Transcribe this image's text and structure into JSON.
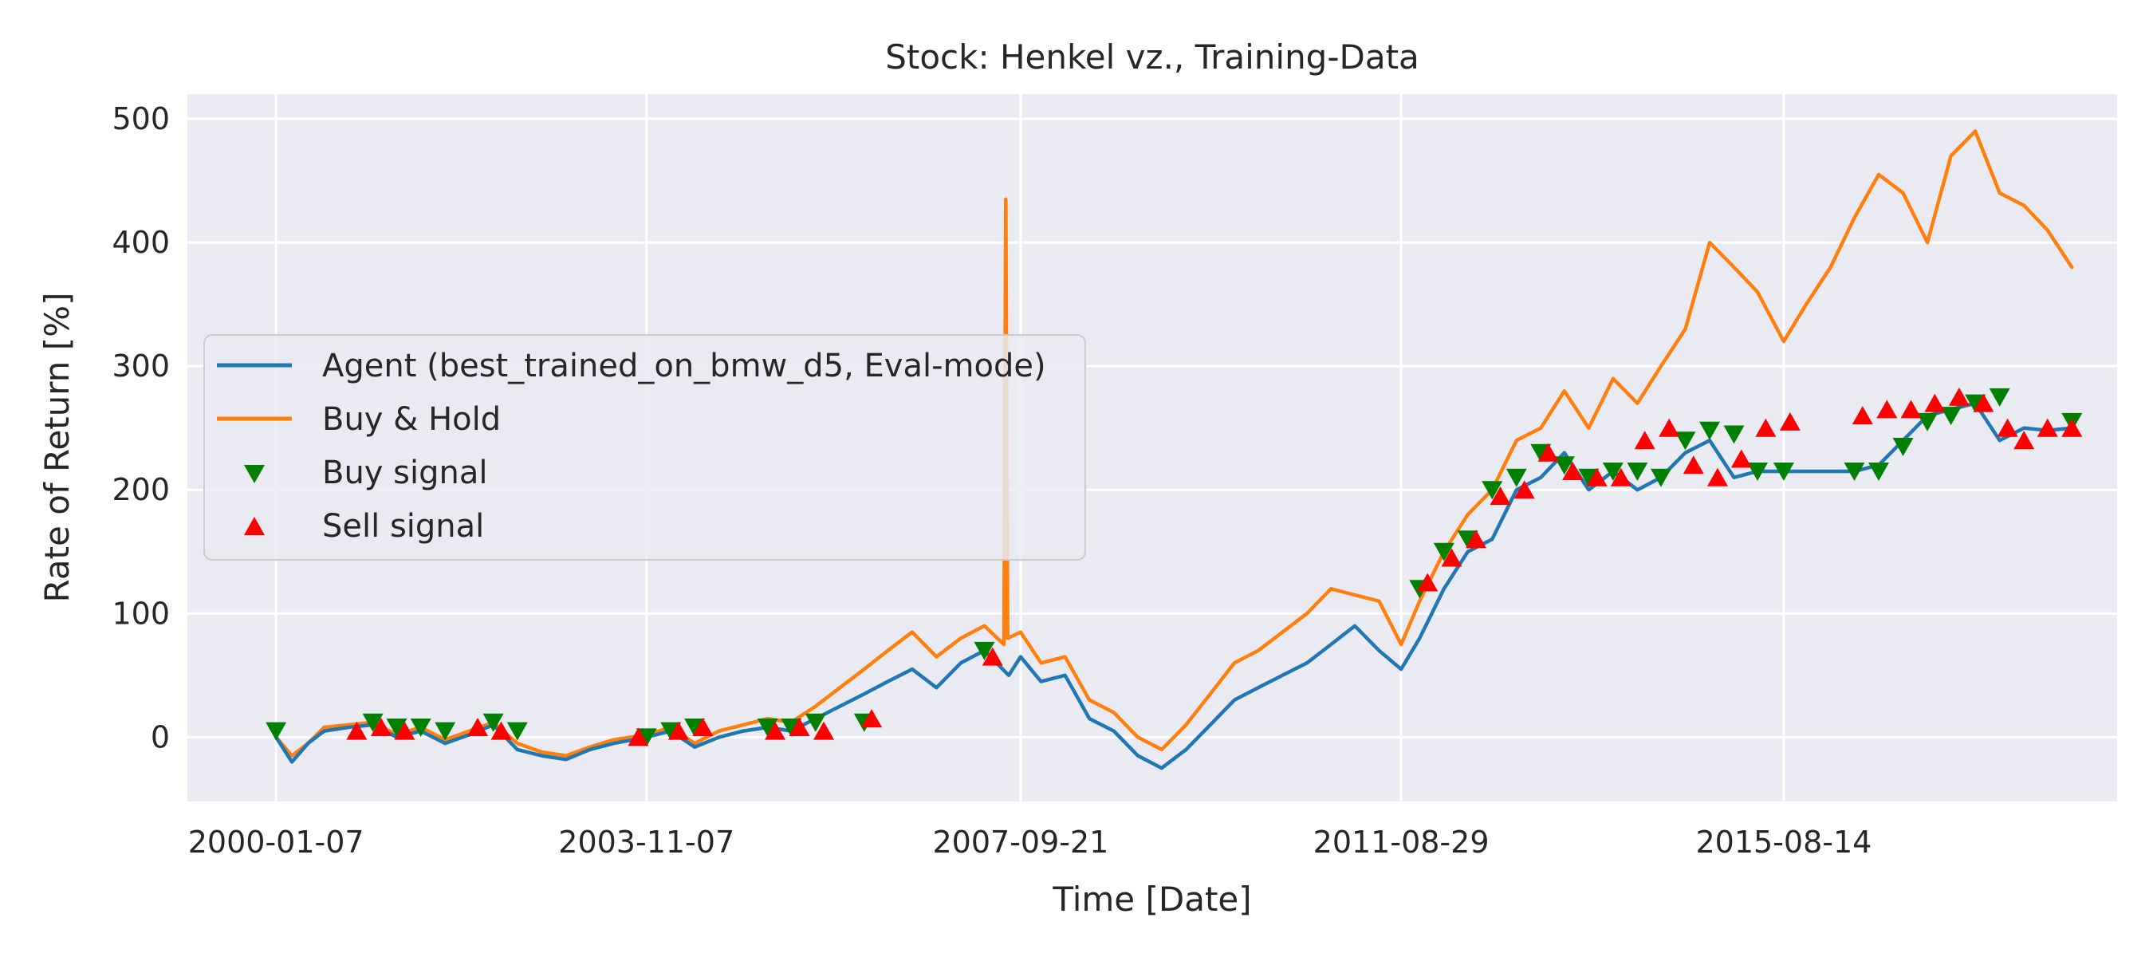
{
  "chart_data": {
    "type": "line",
    "title": "Stock: Henkel vz., Training-Data",
    "xlabel": "Time [Date]",
    "ylabel": "Rate of Return [%]",
    "x_tick_labels": [
      "2000-01-07",
      "2003-11-07",
      "2007-09-21",
      "2011-08-29",
      "2015-08-14"
    ],
    "x_ticks": [
      "2000-01-07",
      "2003-11-07",
      "2007-09-21",
      "2011-08-29",
      "2015-08-14"
    ],
    "xlim": [
      "1999-02-06",
      "2019-01-25"
    ],
    "y_ticks": [
      0,
      100,
      200,
      300,
      400,
      500
    ],
    "ylim": [
      -52,
      520
    ],
    "grid": true,
    "legend_position": "center-left",
    "colors": {
      "background": "#eaeaf2",
      "grid": "#ffffff",
      "agent": "#1f77b4",
      "buy_hold": "#ff7f0e",
      "buy": "#008000",
      "sell": "#ff0000"
    },
    "series": [
      {
        "name": "Agent (best_trained_on_bmw_d5, Eval-mode)",
        "kind": "line",
        "color": "#1f77b4",
        "x": [
          "2000-01-07",
          "2000-03-07",
          "2000-05-07",
          "2000-07-07",
          "2000-10-07",
          "2001-01-07",
          "2001-04-07",
          "2001-07-07",
          "2001-10-07",
          "2002-01-07",
          "2002-04-07",
          "2002-07-07",
          "2002-10-07",
          "2003-01-07",
          "2003-04-07",
          "2003-07-07",
          "2003-11-07",
          "2004-02-07",
          "2004-05-07",
          "2004-08-07",
          "2004-11-07",
          "2005-02-07",
          "2005-05-07",
          "2005-08-07",
          "2005-11-07",
          "2006-02-07",
          "2006-05-07",
          "2006-08-07",
          "2006-11-07",
          "2007-02-07",
          "2007-05-07",
          "2007-08-07",
          "2007-09-21",
          "2007-12-07",
          "2008-03-07",
          "2008-06-07",
          "2008-09-07",
          "2008-12-07",
          "2009-03-07",
          "2009-06-07",
          "2009-09-07",
          "2009-12-07",
          "2010-03-07",
          "2010-06-07",
          "2010-09-07",
          "2010-12-07",
          "2011-03-07",
          "2011-06-07",
          "2011-08-29",
          "2011-11-07",
          "2012-02-07",
          "2012-05-07",
          "2012-08-07",
          "2012-11-07",
          "2013-02-07",
          "2013-05-07",
          "2013-08-07",
          "2013-11-07",
          "2014-02-07",
          "2014-05-07",
          "2014-08-07",
          "2014-11-07",
          "2015-02-07",
          "2015-05-07",
          "2015-08-14",
          "2015-11-07",
          "2016-02-07",
          "2016-05-07",
          "2016-08-07",
          "2016-11-07",
          "2017-02-07",
          "2017-05-07",
          "2017-08-07",
          "2017-11-07",
          "2018-02-07",
          "2018-05-07",
          "2018-08-07"
        ],
        "y": [
          0,
          -20,
          -5,
          5,
          8,
          10,
          0,
          5,
          -5,
          2,
          10,
          -10,
          -15,
          -18,
          -10,
          -5,
          0,
          5,
          -8,
          0,
          5,
          8,
          5,
          15,
          25,
          35,
          45,
          55,
          40,
          60,
          70,
          50,
          65,
          45,
          50,
          15,
          5,
          -15,
          -25,
          -10,
          10,
          30,
          40,
          50,
          60,
          75,
          90,
          70,
          55,
          80,
          120,
          150,
          160,
          200,
          210,
          230,
          200,
          215,
          200,
          210,
          230,
          240,
          210,
          215,
          215,
          215,
          215,
          215,
          220,
          240,
          260,
          265,
          270,
          240,
          250,
          248,
          250
        ]
      },
      {
        "name": "Buy & Hold",
        "kind": "line",
        "color": "#ff7f0e",
        "x": [
          "2000-01-07",
          "2000-03-07",
          "2000-05-07",
          "2000-07-07",
          "2000-10-07",
          "2001-01-07",
          "2001-04-07",
          "2001-07-07",
          "2001-10-07",
          "2002-01-07",
          "2002-04-07",
          "2002-07-07",
          "2002-10-07",
          "2003-01-07",
          "2003-04-07",
          "2003-07-07",
          "2003-11-07",
          "2004-02-07",
          "2004-05-07",
          "2004-08-07",
          "2004-11-07",
          "2005-02-07",
          "2005-05-07",
          "2005-08-07",
          "2005-11-07",
          "2006-02-07",
          "2006-05-07",
          "2006-08-07",
          "2006-11-07",
          "2007-02-07",
          "2007-05-07",
          "2007-07-20",
          "2007-07-27",
          "2007-08-03",
          "2007-09-21",
          "2007-12-07",
          "2008-03-07",
          "2008-06-07",
          "2008-09-07",
          "2008-12-07",
          "2009-03-07",
          "2009-06-07",
          "2009-09-07",
          "2009-12-07",
          "2010-03-07",
          "2010-06-07",
          "2010-09-07",
          "2010-12-07",
          "2011-03-07",
          "2011-06-07",
          "2011-08-29",
          "2011-11-07",
          "2012-02-07",
          "2012-05-07",
          "2012-08-07",
          "2012-11-07",
          "2013-02-07",
          "2013-05-07",
          "2013-08-07",
          "2013-11-07",
          "2014-02-07",
          "2014-05-07",
          "2014-08-07",
          "2014-11-07",
          "2015-02-07",
          "2015-05-07",
          "2015-08-14",
          "2015-11-07",
          "2016-02-07",
          "2016-05-07",
          "2016-08-07",
          "2016-11-07",
          "2017-02-07",
          "2017-05-07",
          "2017-08-07",
          "2017-11-07",
          "2018-02-07",
          "2018-05-07",
          "2018-08-07"
        ],
        "y": [
          0,
          -15,
          -5,
          8,
          10,
          12,
          2,
          8,
          -2,
          5,
          12,
          -5,
          -12,
          -15,
          -8,
          -2,
          2,
          8,
          -5,
          5,
          10,
          15,
          12,
          25,
          40,
          55,
          70,
          85,
          65,
          80,
          90,
          75,
          435,
          80,
          85,
          60,
          65,
          30,
          20,
          0,
          -10,
          10,
          35,
          60,
          70,
          85,
          100,
          120,
          115,
          110,
          75,
          110,
          150,
          180,
          200,
          240,
          250,
          280,
          250,
          290,
          270,
          300,
          330,
          400,
          380,
          360,
          320,
          350,
          380,
          420,
          455,
          440,
          400,
          470,
          490,
          440,
          430,
          410,
          380
        ]
      },
      {
        "name": "Buy signal",
        "kind": "marker-buy",
        "color": "#008000",
        "x": [
          "2000-01-07",
          "2001-01-07",
          "2001-04-07",
          "2001-07-07",
          "2001-10-07",
          "2002-04-07",
          "2002-07-07",
          "2003-11-07",
          "2004-02-07",
          "2004-05-07",
          "2005-02-07",
          "2005-05-07",
          "2005-08-07",
          "2006-02-07",
          "2007-05-07",
          "2011-11-07",
          "2012-02-07",
          "2012-05-07",
          "2012-08-07",
          "2012-11-07",
          "2013-02-07",
          "2013-05-07",
          "2013-08-07",
          "2013-11-07",
          "2014-02-07",
          "2014-05-07",
          "2014-08-07",
          "2014-11-07",
          "2015-02-07",
          "2015-05-07",
          "2015-08-14",
          "2016-05-07",
          "2016-08-07",
          "2016-11-07",
          "2017-02-07",
          "2017-05-07",
          "2017-08-07",
          "2017-11-07",
          "2018-08-07"
        ],
        "y": [
          5,
          12,
          8,
          8,
          5,
          12,
          5,
          0,
          5,
          8,
          8,
          8,
          12,
          12,
          70,
          120,
          150,
          160,
          200,
          210,
          230,
          220,
          210,
          215,
          215,
          210,
          240,
          248,
          245,
          215,
          215,
          215,
          215,
          235,
          255,
          260,
          270,
          275,
          255
        ]
      },
      {
        "name": "Sell signal",
        "kind": "marker-sell",
        "color": "#ff0000",
        "x": [
          "2000-11-07",
          "2001-02-07",
          "2001-05-07",
          "2002-02-07",
          "2002-05-07",
          "2003-10-07",
          "2004-03-07",
          "2004-06-07",
          "2005-03-07",
          "2005-06-07",
          "2005-09-07",
          "2006-03-07",
          "2007-06-07",
          "2011-12-07",
          "2012-03-07",
          "2012-06-07",
          "2012-09-07",
          "2012-12-07",
          "2013-03-07",
          "2013-06-07",
          "2013-09-07",
          "2013-12-07",
          "2014-03-07",
          "2014-06-07",
          "2014-09-07",
          "2014-12-07",
          "2015-03-07",
          "2015-06-07",
          "2015-09-07",
          "2016-06-07",
          "2016-09-07",
          "2016-12-07",
          "2017-03-07",
          "2017-06-07",
          "2017-09-07",
          "2017-12-07",
          "2018-02-07",
          "2018-05-07",
          "2018-08-07"
        ],
        "y": [
          5,
          8,
          5,
          8,
          5,
          0,
          5,
          8,
          5,
          8,
          5,
          15,
          65,
          125,
          145,
          160,
          195,
          200,
          230,
          215,
          210,
          210,
          240,
          250,
          220,
          210,
          225,
          250,
          255,
          260,
          265,
          265,
          270,
          275,
          270,
          250,
          240,
          250,
          250
        ]
      }
    ]
  }
}
